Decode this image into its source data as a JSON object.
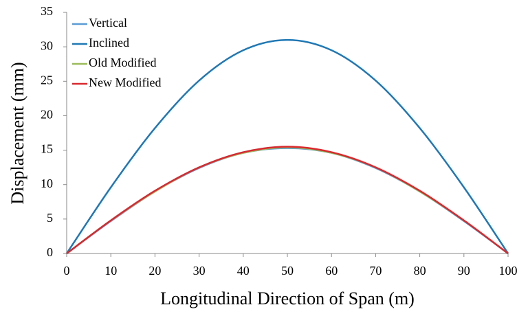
{
  "chart_data": {
    "type": "line",
    "x_label": "Longitudinal Direction of Span (m)",
    "y_label": "Displacement (mm)",
    "x": [
      0,
      10,
      20,
      30,
      40,
      50,
      60,
      70,
      80,
      90,
      100
    ],
    "series": [
      {
        "name": "Vertical",
        "color": "#5b9bd5",
        "values": [
          0,
          4.7,
          9.0,
          12.4,
          14.6,
          15.3,
          14.6,
          12.4,
          9.0,
          4.7,
          0
        ]
      },
      {
        "name": "Inclined",
        "color": "#1f78b4",
        "values": [
          0,
          9.6,
          18.2,
          25.1,
          29.5,
          31.0,
          29.5,
          25.1,
          18.2,
          9.6,
          0
        ]
      },
      {
        "name": "Old Modified",
        "color": "#9bbb59",
        "values": [
          0,
          4.8,
          9.0,
          12.5,
          14.6,
          15.4,
          14.6,
          12.5,
          9.0,
          4.8,
          0
        ]
      },
      {
        "name": "New Modified",
        "color": "#d9282f",
        "values": [
          0,
          4.8,
          9.1,
          12.5,
          14.7,
          15.5,
          14.7,
          12.5,
          9.1,
          4.8,
          0
        ]
      }
    ],
    "xlim": [
      0,
      100
    ],
    "xticks": [
      0,
      10,
      20,
      30,
      40,
      50,
      60,
      70,
      80,
      90,
      100
    ],
    "ylim": [
      0,
      35
    ],
    "yticks": [
      0,
      5,
      10,
      15,
      20,
      25,
      30,
      35
    ],
    "legend": "upper left",
    "grid": false
  }
}
